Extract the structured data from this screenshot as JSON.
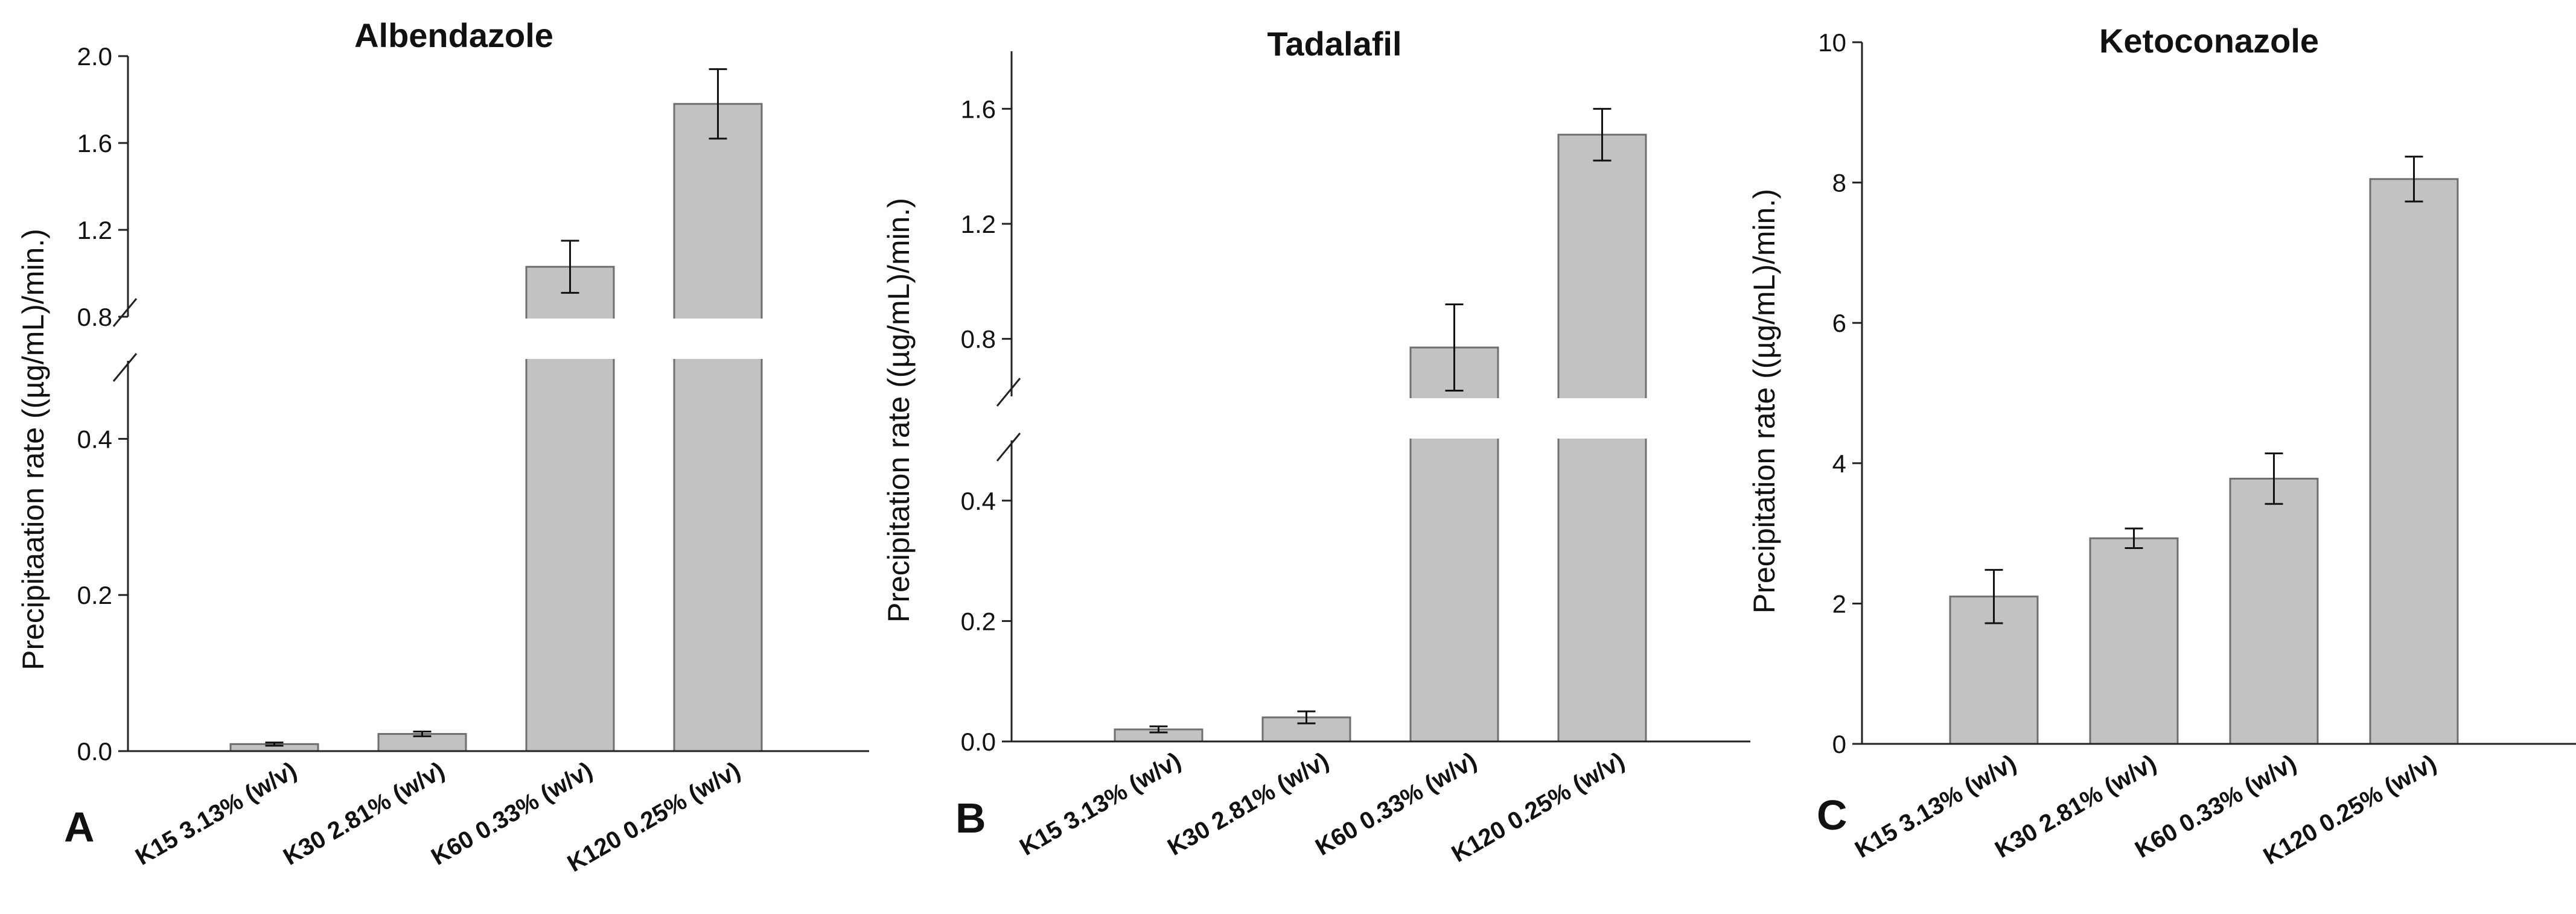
{
  "chart_data": [
    {
      "type": "bar",
      "panel": "A",
      "title": "Albendazole",
      "ylabel": "Precipitaation rate ((µg/mL)/min.)",
      "xlabel": "",
      "axis_break": [
        0.5,
        0.8
      ],
      "ylim": [
        0,
        2.0
      ],
      "yticks": [
        0.0,
        0.2,
        0.4,
        0.8,
        1.2,
        1.6,
        2.0
      ],
      "ytick_labels": [
        "0.0",
        "0.2",
        "0.4",
        "0.8",
        "1.2",
        "1.6",
        "2.0"
      ],
      "categories": [
        "K15 3.13% (w/v)",
        "K30 2.81% (w/v)",
        "K60 0.33% (w/v)",
        "K120 0.25% (w/v)"
      ],
      "values": [
        0.009,
        0.022,
        1.03,
        1.78
      ],
      "errors": [
        0.002,
        0.003,
        0.12,
        0.16
      ]
    },
    {
      "type": "bar",
      "panel": "B",
      "title": "Tadalafil",
      "ylabel": "Precipitation rate ((µg/mL)/min.)",
      "xlabel": "",
      "axis_break": [
        0.5,
        0.6
      ],
      "ylim": [
        0,
        1.8
      ],
      "yticks": [
        0.0,
        0.2,
        0.4,
        0.8,
        1.2,
        1.6
      ],
      "ytick_labels": [
        "0.0",
        "0.2",
        "0.4",
        "0.8",
        "1.2",
        "1.6"
      ],
      "categories": [
        "K15 3.13% (w/v)",
        "K30 2.81% (w/v)",
        "K60 0.33% (w/v)",
        "K120 0.25% (w/v)"
      ],
      "values": [
        0.02,
        0.04,
        0.77,
        1.51
      ],
      "errors": [
        0.005,
        0.01,
        0.15,
        0.09
      ]
    },
    {
      "type": "bar",
      "panel": "C",
      "title": "Ketoconazole",
      "ylabel": "Precipitation rate ((µg/mL)/min.)",
      "xlabel": "",
      "ylim": [
        0,
        10
      ],
      "yticks": [
        0,
        2,
        4,
        6,
        8,
        10
      ],
      "ytick_labels": [
        "0",
        "2",
        "4",
        "6",
        "8",
        "10"
      ],
      "categories": [
        "K15 3.13% (w/v)",
        "K30 2.81% (w/v)",
        "K60 0.33% (w/v)",
        "K120 0.25% (w/v)"
      ],
      "values": [
        2.1,
        2.93,
        3.78,
        8.05
      ],
      "errors": [
        0.38,
        0.14,
        0.36,
        0.32
      ]
    }
  ]
}
